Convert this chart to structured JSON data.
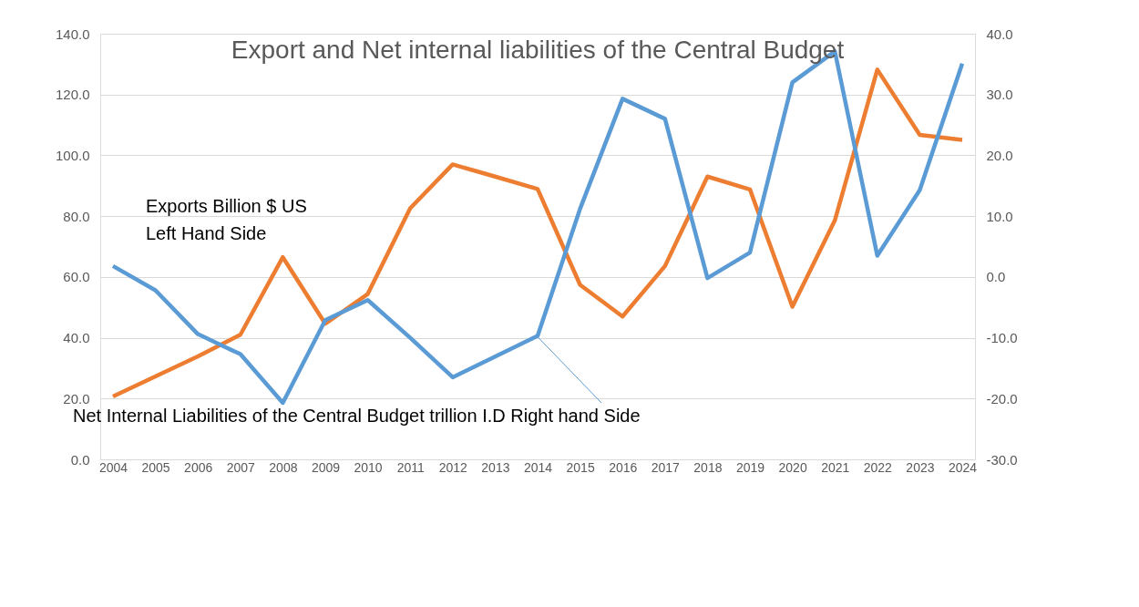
{
  "chart_data": {
    "type": "line",
    "title": "Export and Net internal liabilities of the Central Budget",
    "categories": [
      "2004",
      "2005",
      "2006",
      "2007",
      "2008",
      "2009",
      "2010",
      "2011",
      "2012",
      "2013",
      "2014",
      "2015",
      "2016",
      "2017",
      "2018",
      "2019",
      "2020",
      "2021",
      "2022",
      "2023",
      "2024"
    ],
    "series": [
      {
        "color": "#ed7d31",
        "axis": "y",
        "values": [
          20.7,
          27.3,
          33.9,
          41.0,
          66.5,
          44.6,
          54.4,
          82.6,
          97.0,
          93.0,
          88.9,
          57.4,
          47.0,
          63.6,
          93.0,
          88.8,
          50.2,
          78.6,
          128.2,
          106.7,
          105.1
        ]
      },
      {
        "color": "#5b9bd5",
        "axis": "y2",
        "values": [
          1.8,
          -2.2,
          -9.4,
          -12.7,
          -20.7,
          -7.1,
          -3.8,
          -10.0,
          -16.5,
          -13.1,
          -9.7,
          11.2,
          29.3,
          26.0,
          -0.2,
          4.0,
          32.0,
          37.1,
          3.5,
          14.3,
          35.1
        ]
      }
    ],
    "ylim": [
      0,
      140
    ],
    "yticks": [
      {
        "value": 0,
        "label": "0.0"
      },
      {
        "value": 20,
        "label": "20.0"
      },
      {
        "value": 40,
        "label": "40.0"
      },
      {
        "value": 60,
        "label": "60.0"
      },
      {
        "value": 80,
        "label": "80.0"
      },
      {
        "value": 100,
        "label": "100.0"
      },
      {
        "value": 120,
        "label": "120.0"
      },
      {
        "value": 140,
        "label": "140.0"
      }
    ],
    "y2lim": [
      -30,
      40
    ],
    "y2ticks": [
      {
        "value": -30,
        "label": "-30.0"
      },
      {
        "value": -20,
        "label": "-20.0"
      },
      {
        "value": -10,
        "label": "-10.0"
      },
      {
        "value": 0,
        "label": "0.0"
      },
      {
        "value": 10,
        "label": "10.0"
      },
      {
        "value": 20,
        "label": "20.0"
      },
      {
        "value": 30,
        "label": "30.0"
      },
      {
        "value": 40,
        "label": "40.0"
      }
    ],
    "annotations": [
      "Exports Billion $ US\nLeft Hand Side",
      {
        "text": "Net Internal Liabilities of the Central Budget trillion I.D Right hand Side",
        "x": "2014",
        "y": 40.3
      }
    ],
    "grid": "y",
    "marker": "none",
    "line_style": "solid"
  }
}
